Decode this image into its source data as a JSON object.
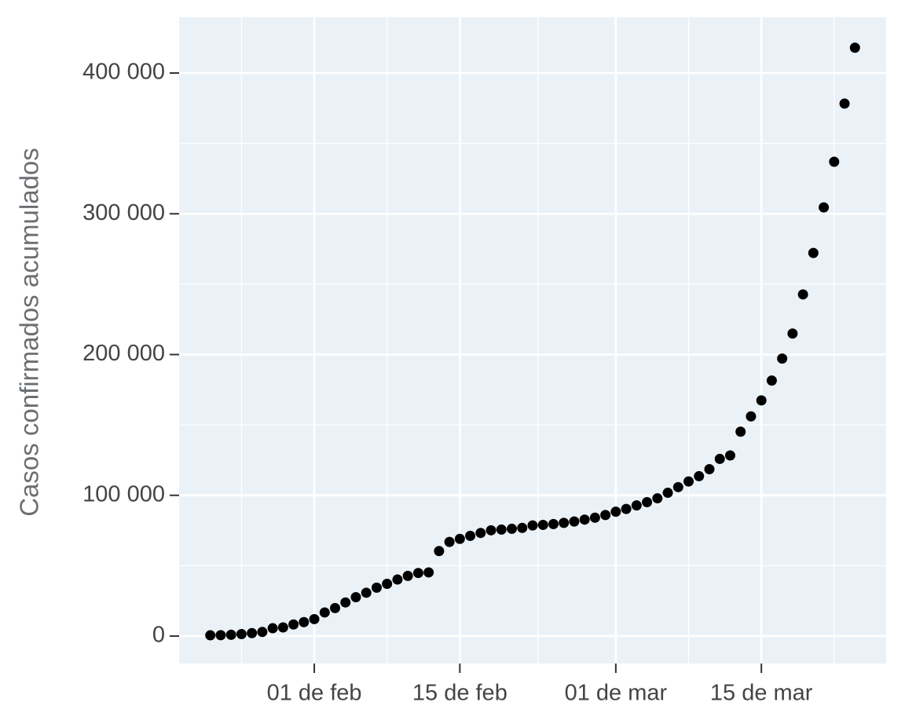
{
  "chart_data": {
    "type": "scatter",
    "y_label": "Casos confirmados acumulados",
    "x": [
      "01-22",
      "01-23",
      "01-24",
      "01-25",
      "01-26",
      "01-27",
      "01-28",
      "01-29",
      "01-30",
      "01-31",
      "02-01",
      "02-02",
      "02-03",
      "02-04",
      "02-05",
      "02-06",
      "02-07",
      "02-08",
      "02-09",
      "02-10",
      "02-11",
      "02-12",
      "02-13",
      "02-14",
      "02-15",
      "02-16",
      "02-17",
      "02-18",
      "02-19",
      "02-20",
      "02-21",
      "02-22",
      "02-23",
      "02-24",
      "02-25",
      "02-26",
      "02-27",
      "02-28",
      "02-29",
      "03-01",
      "03-02",
      "03-03",
      "03-04",
      "03-05",
      "03-06",
      "03-07",
      "03-08",
      "03-09",
      "03-10",
      "03-11",
      "03-12",
      "03-13",
      "03-14",
      "03-15",
      "03-16",
      "03-17",
      "03-18",
      "03-19",
      "03-20",
      "03-21",
      "03-22",
      "03-23",
      "03-24"
    ],
    "values": [
      555,
      654,
      941,
      1434,
      2118,
      2927,
      5578,
      6166,
      8234,
      9927,
      12038,
      16787,
      19887,
      23898,
      27643,
      30802,
      34395,
      37129,
      40160,
      42769,
      44811,
      45229,
      60381,
      66909,
      69052,
      71235,
      73270,
      75152,
      75660,
      76212,
      76843,
      78599,
      78985,
      79570,
      80415,
      81397,
      82756,
      84124,
      86013,
      88371,
      90309,
      92844,
      95124,
      97886,
      101800,
      105836,
      109835,
      113582,
      118582,
      125865,
      128343,
      145193,
      156094,
      167446,
      181527,
      197142,
      214910,
      242708,
      272166,
      304524,
      336953,
      378287,
      417966
    ],
    "color": "#000000",
    "xlim": [
      "01-19",
      "03-27"
    ],
    "xticks": [
      {
        "value": "02-01",
        "label": "01 de feb"
      },
      {
        "value": "02-15",
        "label": "15 de feb"
      },
      {
        "value": "03-01",
        "label": "01 de mar"
      },
      {
        "value": "03-15",
        "label": "15 de mar"
      }
    ],
    "ylim": [
      -19500,
      439600
    ],
    "yticks": [
      0,
      {
        "value": 100000,
        "label": "100 000"
      },
      {
        "value": 200000,
        "label": "200 000"
      },
      {
        "value": 300000,
        "label": "300 000"
      },
      {
        "value": 400000,
        "label": "400 000"
      }
    ],
    "grid": true,
    "panel_color": "#ebf2f7"
  }
}
